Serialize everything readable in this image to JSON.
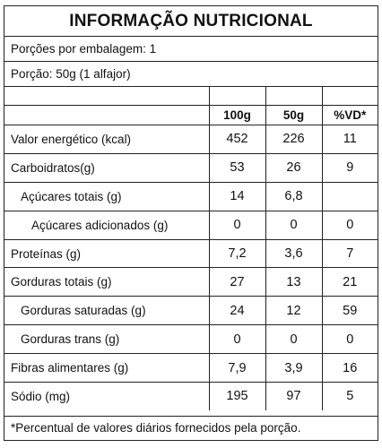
{
  "title": "INFORMAÇÃO NUTRICIONAL",
  "servings_per_package": "Porções por embalagem: 1",
  "serving_size": "Porção: 50g (1 alfajor)",
  "columns": [
    "100g",
    "50g",
    "%VD*"
  ],
  "rows": [
    {
      "label": "Valor energético (kcal)",
      "v100": "452",
      "v50": "226",
      "vd": "11"
    },
    {
      "label": "Carboidratos(g)",
      "v100": "53",
      "v50": "26",
      "vd": "9"
    },
    {
      "label": "Açúcares totais (g)",
      "v100": "14",
      "v50": "6,8",
      "vd": ""
    },
    {
      "label": "Açúcares adicionados (g)",
      "v100": "0",
      "v50": "0",
      "vd": "0"
    },
    {
      "label": "Proteínas (g)",
      "v100": "7,2",
      "v50": "3,6",
      "vd": "7"
    },
    {
      "label": "Gorduras totais (g)",
      "v100": "27",
      "v50": "13",
      "vd": "21"
    },
    {
      "label": "Gorduras saturadas (g)",
      "v100": "24",
      "v50": "12",
      "vd": "59"
    },
    {
      "label": "Gorduras trans (g)",
      "v100": "0",
      "v50": "0",
      "vd": "0"
    },
    {
      "label": "Fibras alimentares (g)",
      "v100": "7,9",
      "v50": "3,9",
      "vd": "16"
    },
    {
      "label": "Sódio (mg)",
      "v100": "195",
      "v50": "97",
      "vd": "5"
    }
  ],
  "footnote": "*Percentual de valores diários fornecidos pela porção."
}
